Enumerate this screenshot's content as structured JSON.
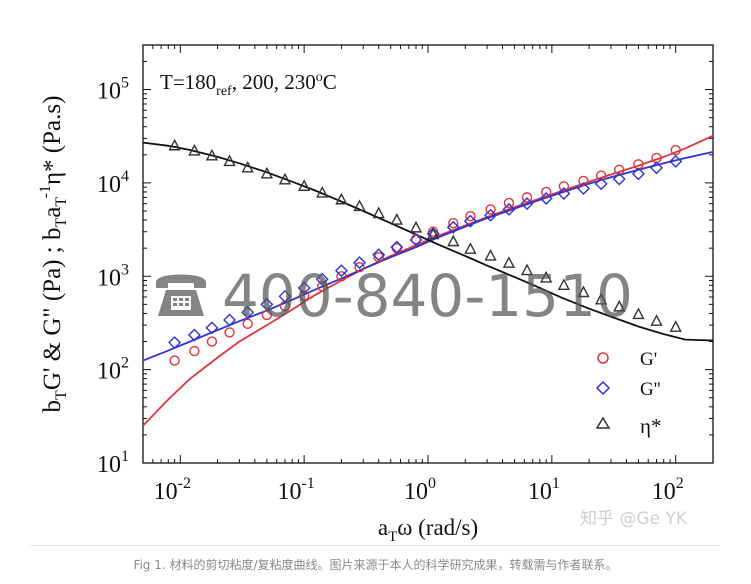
{
  "chart_data": {
    "type": "scatter",
    "x_scale": "log",
    "y_scale": "log",
    "xlim": [
      0.005,
      200
    ],
    "ylim": [
      10,
      300000
    ],
    "x_ticks": [
      {
        "value": 0.01,
        "base": "10",
        "exp": "-2"
      },
      {
        "value": 0.1,
        "base": "10",
        "exp": "-1"
      },
      {
        "value": 1,
        "base": "10",
        "exp": "0"
      },
      {
        "value": 10,
        "base": "10",
        "exp": "1"
      },
      {
        "value": 100,
        "base": "10",
        "exp": "2"
      }
    ],
    "y_ticks": [
      {
        "value": 10,
        "base": "10",
        "exp": "1"
      },
      {
        "value": 100,
        "base": "10",
        "exp": "2"
      },
      {
        "value": 1000,
        "base": "10",
        "exp": "3"
      },
      {
        "value": 10000,
        "base": "10",
        "exp": "4"
      },
      {
        "value": 100000,
        "base": "10",
        "exp": "5"
      }
    ],
    "xlabel_parts": [
      "a",
      "T",
      "ω (rad/s)"
    ],
    "ylabel_parts": [
      "b",
      "T",
      "G' & G\" (Pa) ;  b",
      "T",
      "a",
      "T",
      "-1",
      "η* (Pa.s)"
    ],
    "annotation_parts": [
      "T=180",
      "ref",
      ", 200, 230",
      "o",
      "C"
    ],
    "legend_position": "bottom-right",
    "series": [
      {
        "name": "G'",
        "marker": "circle",
        "color": "#e0343a",
        "x": [
          0.009,
          0.013,
          0.018,
          0.025,
          0.035,
          0.05,
          0.07,
          0.1,
          0.14,
          0.2,
          0.28,
          0.4,
          0.56,
          0.8,
          1.1,
          1.6,
          2.2,
          3.2,
          4.5,
          6.3,
          9,
          12.5,
          18,
          25,
          35,
          50,
          70,
          100
        ],
        "y": [
          125,
          158,
          200,
          250,
          310,
          385,
          480,
          620,
          780,
          1000,
          1250,
          1600,
          2000,
          2500,
          3000,
          3700,
          4400,
          5200,
          6100,
          7000,
          8000,
          9200,
          10500,
          12000,
          13800,
          15800,
          18500,
          22500
        ]
      },
      {
        "name": "G''",
        "marker": "diamond",
        "color": "#2e33d6",
        "x": [
          0.009,
          0.013,
          0.018,
          0.025,
          0.035,
          0.05,
          0.07,
          0.1,
          0.14,
          0.2,
          0.28,
          0.4,
          0.56,
          0.8,
          1.1,
          1.6,
          2.2,
          3.2,
          4.5,
          6.3,
          9,
          12.5,
          18,
          25,
          35,
          50,
          70,
          100
        ],
        "y": [
          195,
          235,
          280,
          340,
          410,
          500,
          610,
          750,
          930,
          1150,
          1400,
          1700,
          2050,
          2450,
          2850,
          3350,
          3900,
          4500,
          5200,
          6000,
          6800,
          7700,
          8700,
          9800,
          11000,
          12500,
          14500,
          17000
        ]
      },
      {
        "name": "η*",
        "marker": "triangle",
        "color": "#333333",
        "x": [
          0.009,
          0.013,
          0.018,
          0.025,
          0.035,
          0.05,
          0.07,
          0.1,
          0.14,
          0.2,
          0.28,
          0.4,
          0.56,
          0.8,
          1.1,
          1.6,
          2.2,
          3.2,
          4.5,
          6.3,
          9,
          12.5,
          18,
          25,
          35,
          50,
          70,
          100
        ],
        "y": [
          25000,
          22000,
          19500,
          17000,
          14500,
          12500,
          10800,
          9200,
          7800,
          6600,
          5600,
          4700,
          4000,
          3300,
          2800,
          2350,
          1950,
          1650,
          1380,
          1150,
          960,
          800,
          670,
          560,
          470,
          390,
          330,
          285
        ]
      }
    ],
    "fits": [
      {
        "color": "#e0343a",
        "x": [
          0.005,
          0.008,
          0.012,
          0.02,
          0.03,
          0.05,
          0.08,
          0.12,
          0.2,
          0.3,
          0.5,
          0.8,
          1.2,
          2,
          3,
          5,
          8,
          12,
          20,
          30,
          50,
          80,
          120,
          200
        ],
        "y": [
          25,
          48,
          80,
          135,
          200,
          300,
          440,
          620,
          900,
          1200,
          1650,
          2150,
          2700,
          3500,
          4300,
          5500,
          6800,
          8200,
          10300,
          12300,
          15300,
          19000,
          23500,
          32000
        ]
      },
      {
        "color": "#2e33d6",
        "x": [
          0.005,
          0.008,
          0.012,
          0.02,
          0.03,
          0.05,
          0.08,
          0.12,
          0.2,
          0.3,
          0.5,
          0.8,
          1.2,
          2,
          3,
          5,
          8,
          12,
          20,
          30,
          50,
          80,
          120,
          200
        ],
        "y": [
          125,
          160,
          200,
          265,
          330,
          430,
          560,
          710,
          950,
          1200,
          1600,
          2050,
          2600,
          3400,
          4200,
          5300,
          6600,
          7900,
          9800,
          11500,
          13800,
          16200,
          18500,
          21500
        ]
      },
      {
        "color": "#111111",
        "x": [
          0.005,
          0.008,
          0.012,
          0.02,
          0.03,
          0.05,
          0.08,
          0.12,
          0.2,
          0.3,
          0.5,
          0.8,
          1.2,
          2,
          3,
          5,
          8,
          12,
          20,
          30,
          50,
          80,
          120,
          200
        ],
        "y": [
          27000,
          25000,
          22500,
          19000,
          16200,
          13000,
          10300,
          8400,
          6300,
          5000,
          3700,
          2800,
          2200,
          1650,
          1300,
          980,
          750,
          590,
          450,
          370,
          290,
          240,
          210,
          205
        ]
      }
    ]
  },
  "watermarks": {
    "phone": "400-840-1510",
    "phone_icon": "telephone-icon",
    "zhihu": "知乎 @Ge YK"
  },
  "caption": "Fig 1. 材料的剪切粘度/复粘度曲线。图片来源于本人的科学研究成果，转载需与作者联系。"
}
